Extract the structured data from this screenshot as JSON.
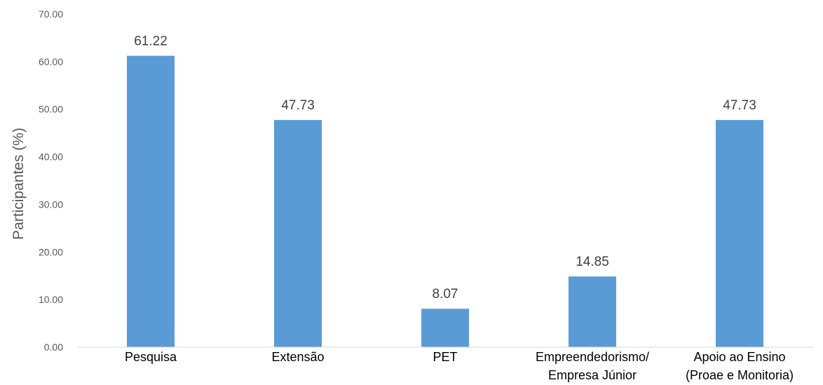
{
  "colors": {
    "bar": "#5b9bd5",
    "axis": "#d9d9d9"
  },
  "chart_data": {
    "type": "bar",
    "title": "",
    "xlabel": "",
    "ylabel": "Participantes (%)",
    "ylim": [
      0,
      70
    ],
    "yticks": [
      "0.00",
      "10.00",
      "20.00",
      "30.00",
      "40.00",
      "50.00",
      "60.00",
      "70.00"
    ],
    "categories": [
      [
        "Pesquisa"
      ],
      [
        "Extensão"
      ],
      [
        "PET"
      ],
      [
        "Empreendedorismo/",
        "Empresa Júnior"
      ],
      [
        "Apoio ao Ensino",
        "(Proae e Monitoria)"
      ]
    ],
    "values": [
      61.22,
      47.73,
      8.07,
      14.85,
      47.73
    ],
    "data_labels": [
      "61.22",
      "47.73",
      "8.07",
      "14.85",
      "47.73"
    ],
    "grid": false,
    "legend": "none"
  }
}
